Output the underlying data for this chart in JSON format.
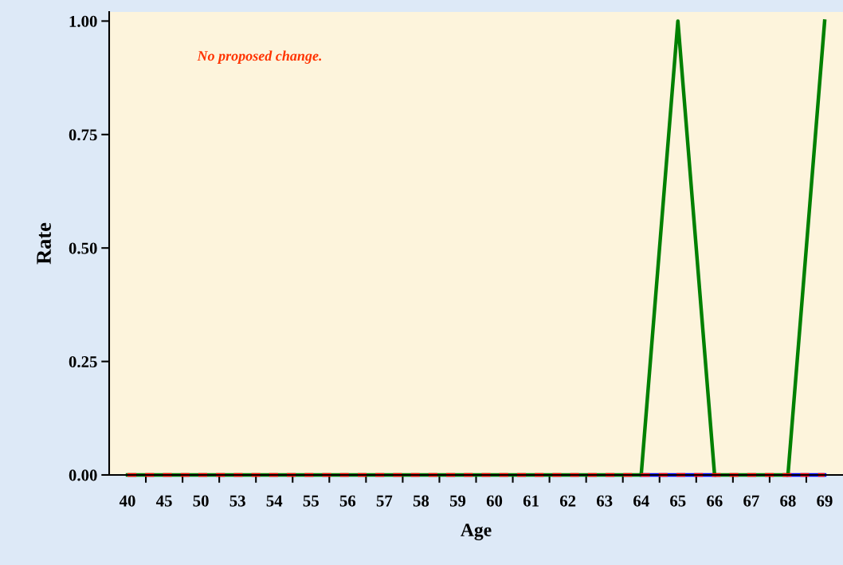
{
  "chart_data": {
    "type": "line",
    "xlabel": "Age",
    "ylabel": "Rate",
    "categories": [
      "40",
      "45",
      "50",
      "53",
      "54",
      "55",
      "56",
      "57",
      "58",
      "59",
      "60",
      "61",
      "62",
      "63",
      "64",
      "65",
      "66",
      "67",
      "68",
      "69"
    ],
    "series": [
      {
        "color": "#0000ff",
        "line_style": "solid",
        "values": [
          null,
          null,
          null,
          null,
          null,
          null,
          null,
          null,
          null,
          null,
          null,
          null,
          null,
          null,
          0,
          0,
          0,
          null,
          0,
          0
        ]
      },
      {
        "color": "#008000",
        "line_style": "solid",
        "values": [
          0,
          0,
          0,
          0,
          0,
          0,
          0,
          0,
          0,
          0,
          0,
          0,
          0,
          0,
          0,
          1,
          0,
          0,
          0,
          1
        ]
      },
      {
        "color": "#ff0000",
        "line_style": "dashed",
        "values": [
          0,
          0,
          0,
          0,
          0,
          0,
          0,
          0,
          0,
          0,
          0,
          0,
          0,
          0,
          0,
          0,
          0,
          0,
          0,
          0
        ]
      }
    ],
    "ylim": [
      0,
      1.02
    ],
    "yticks": [
      {
        "value": 0,
        "label": "0.00"
      },
      {
        "value": 0.25,
        "label": "0.25"
      },
      {
        "value": 0.5,
        "label": "0.50"
      },
      {
        "value": 0.75,
        "label": "0.75"
      },
      {
        "value": 1,
        "label": "1.00"
      }
    ],
    "grid": false,
    "legend": false,
    "marker": "none",
    "annotations": [
      "No proposed change."
    ]
  }
}
